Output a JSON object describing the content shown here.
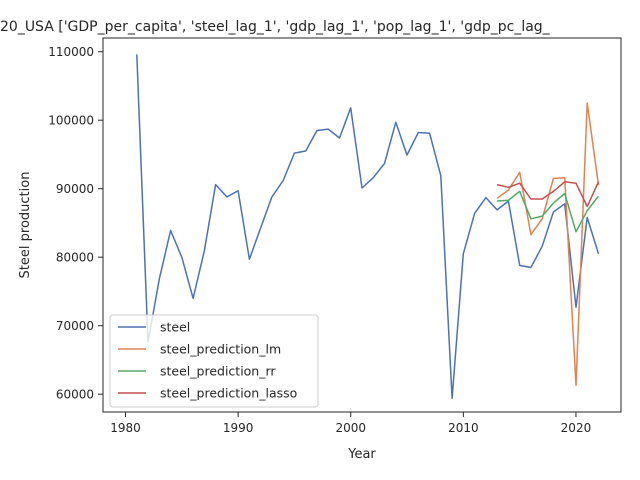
{
  "chart_data": {
    "type": "line",
    "title": "20_USA ['GDP_per_capita', 'steel_lag_1', 'gdp_lag_1', 'pop_lag_1', 'gdp_pc_lag_",
    "xlabel": "Year",
    "ylabel": "Steel production",
    "xlim": [
      1978,
      2024
    ],
    "ylim": [
      57400,
      112000
    ],
    "xticks": [
      1980,
      1990,
      2000,
      2010,
      2020
    ],
    "yticks": [
      60000,
      70000,
      80000,
      90000,
      100000,
      110000
    ],
    "xtick_labels": [
      "1980",
      "1990",
      "2000",
      "2010",
      "2020"
    ],
    "ytick_labels": [
      "60000",
      "70000",
      "80000",
      "90000",
      "100000",
      "110000"
    ],
    "legend_position": "lower-left",
    "grid": false,
    "series": [
      {
        "name": "steel",
        "color": "#4c72b0",
        "x": [
          1981,
          1982,
          1983,
          1984,
          1985,
          1986,
          1987,
          1988,
          1989,
          1990,
          1991,
          1992,
          1993,
          1994,
          1995,
          1996,
          1997,
          1998,
          1999,
          2000,
          2001,
          2002,
          2003,
          2004,
          2005,
          2006,
          2007,
          2008,
          2009,
          2010,
          2011,
          2012,
          2013,
          2014,
          2015,
          2016,
          2017,
          2018,
          2019,
          2020,
          2021,
          2022
        ],
        "y": [
          109600,
          67600,
          76800,
          83900,
          80000,
          74000,
          80900,
          90600,
          88800,
          89700,
          79700,
          84300,
          88800,
          91200,
          95200,
          95500,
          98500,
          98700,
          97400,
          101800,
          90100,
          91600,
          93700,
          99700,
          94900,
          98200,
          98100,
          91900,
          59400,
          80500,
          86400,
          88700,
          86900,
          88200,
          78800,
          78500,
          81600,
          86600,
          87800,
          72700,
          85800,
          80500
        ]
      },
      {
        "name": "steel_prediction_lm",
        "color": "#dd8452",
        "x": [
          2013,
          2014,
          2015,
          2016,
          2017,
          2018,
          2019,
          2020,
          2021,
          2022
        ],
        "y": [
          88600,
          89800,
          92400,
          83300,
          85600,
          91500,
          91600,
          61300,
          102500,
          90500
        ]
      },
      {
        "name": "steel_prediction_rr",
        "color": "#55a868",
        "x": [
          2013,
          2014,
          2015,
          2016,
          2017,
          2018,
          2019,
          2020,
          2021,
          2022
        ],
        "y": [
          88200,
          88300,
          89600,
          85600,
          86000,
          87900,
          89300,
          83700,
          86800,
          88900
        ]
      },
      {
        "name": "steel_prediction_lasso",
        "color": "#c44e52",
        "x": [
          2013,
          2014,
          2015,
          2016,
          2017,
          2018,
          2019,
          2020,
          2021,
          2022
        ],
        "y": [
          90600,
          90200,
          90800,
          88500,
          88500,
          89600,
          91000,
          90800,
          87400,
          91000
        ]
      }
    ]
  }
}
